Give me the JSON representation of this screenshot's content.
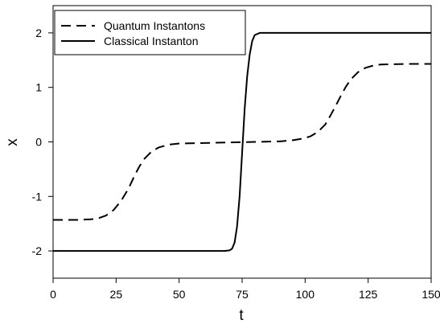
{
  "chart_data": {
    "type": "line",
    "xlabel": "t",
    "ylabel": "x",
    "xlim": [
      0,
      150
    ],
    "ylim": [
      -2.5,
      2.5
    ],
    "x_ticks": [
      0,
      25,
      50,
      75,
      100,
      125,
      150
    ],
    "y_ticks": [
      -2,
      -1,
      0,
      1,
      2
    ],
    "x_tick_labels": [
      "0",
      "25",
      "50",
      "75",
      "100",
      "125",
      "150"
    ],
    "y_tick_labels": [
      "-2",
      "-1",
      "0",
      "1",
      "2"
    ],
    "grid": false,
    "legend_position": "top-left",
    "series": [
      {
        "name": "Quantum Instantons",
        "style": "dashed",
        "color": "#000000",
        "points": [
          [
            0,
            -1.43
          ],
          [
            5,
            -1.43
          ],
          [
            10,
            -1.43
          ],
          [
            15,
            -1.42
          ],
          [
            18,
            -1.4
          ],
          [
            21,
            -1.35
          ],
          [
            24,
            -1.25
          ],
          [
            27,
            -1.08
          ],
          [
            30,
            -0.85
          ],
          [
            32,
            -0.65
          ],
          [
            34,
            -0.47
          ],
          [
            36,
            -0.32
          ],
          [
            39,
            -0.18
          ],
          [
            42,
            -0.1
          ],
          [
            46,
            -0.05
          ],
          [
            50,
            -0.03
          ],
          [
            60,
            -0.02
          ],
          [
            70,
            -0.01
          ],
          [
            80,
            0.0
          ],
          [
            90,
            0.01
          ],
          [
            95,
            0.03
          ],
          [
            99,
            0.06
          ],
          [
            102,
            0.1
          ],
          [
            105,
            0.18
          ],
          [
            108,
            0.32
          ],
          [
            110,
            0.48
          ],
          [
            112,
            0.65
          ],
          [
            114,
            0.83
          ],
          [
            116,
            1.0
          ],
          [
            118,
            1.14
          ],
          [
            121,
            1.28
          ],
          [
            124,
            1.36
          ],
          [
            127,
            1.4
          ],
          [
            130,
            1.42
          ],
          [
            140,
            1.43
          ],
          [
            150,
            1.43
          ]
        ]
      },
      {
        "name": "Classical Instanton",
        "style": "solid",
        "color": "#000000",
        "points": [
          [
            0,
            -2.0
          ],
          [
            60,
            -2.0
          ],
          [
            68,
            -2.0
          ],
          [
            70,
            -1.99
          ],
          [
            71,
            -1.96
          ],
          [
            72,
            -1.85
          ],
          [
            73,
            -1.55
          ],
          [
            74,
            -1.0
          ],
          [
            75,
            -0.2
          ],
          [
            76,
            0.6
          ],
          [
            77,
            1.2
          ],
          [
            78,
            1.6
          ],
          [
            79,
            1.85
          ],
          [
            80,
            1.96
          ],
          [
            82,
            2.0
          ],
          [
            100,
            2.0
          ],
          [
            150,
            2.0
          ]
        ]
      }
    ]
  }
}
